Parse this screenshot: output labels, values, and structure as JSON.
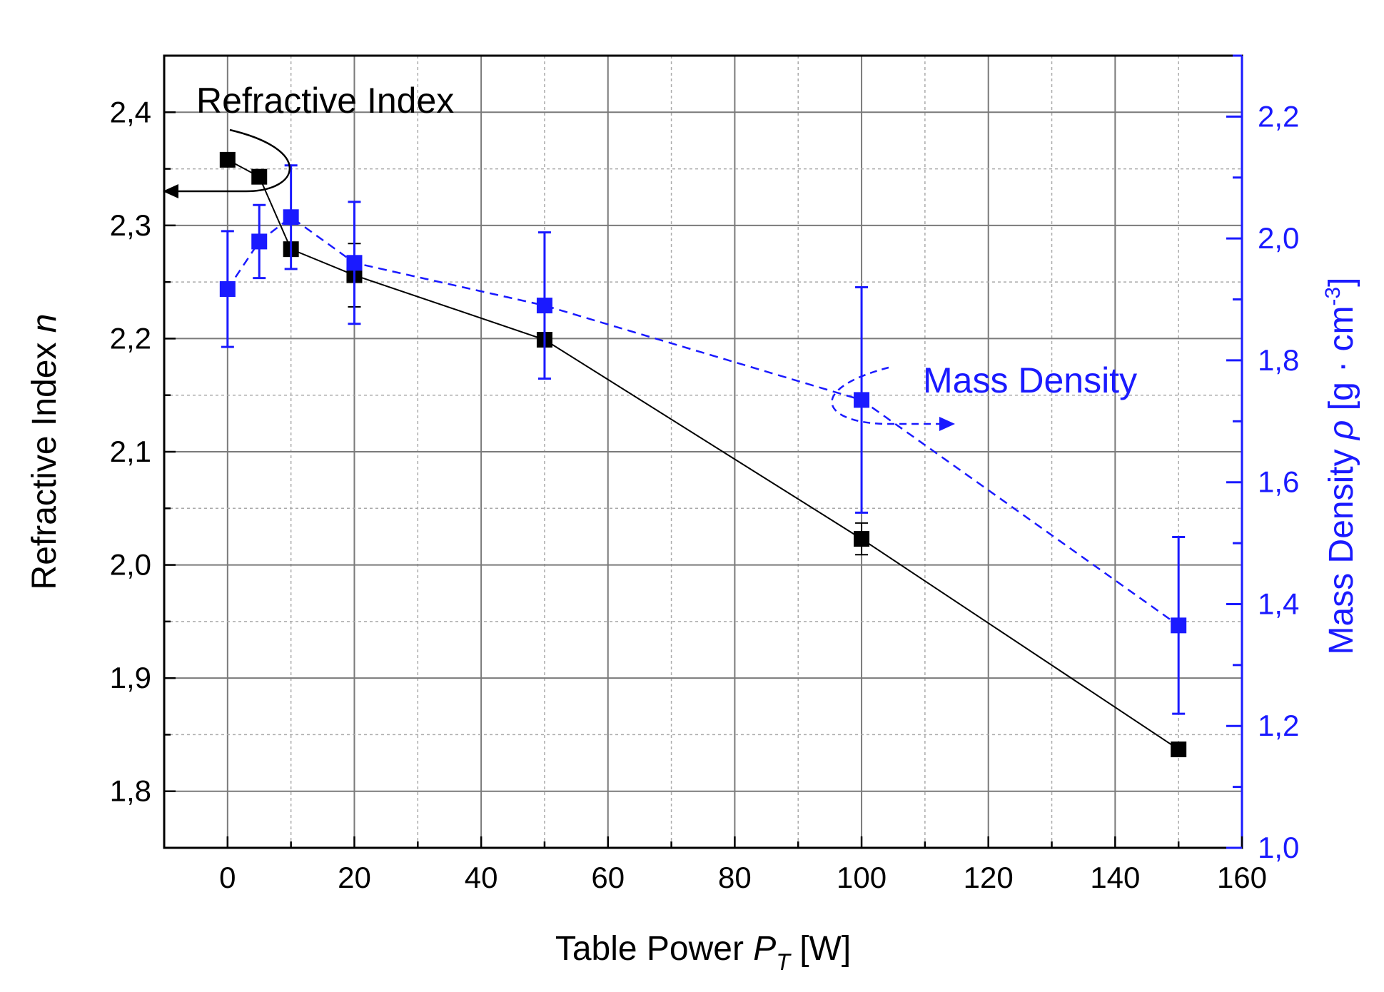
{
  "chart_data": {
    "type": "line",
    "xlabel": {
      "main": "Table Power ",
      "var": "P",
      "sub": "T",
      "unit": " [W]"
    },
    "ylabel_left": {
      "main": "Refractive Index ",
      "var": "n"
    },
    "ylabel_right": {
      "main": "Mass Density ",
      "var": "ρ",
      "unit": " [g · cm",
      "sup": "-3",
      "close": "]"
    },
    "xlim": [
      -10,
      160
    ],
    "ylim_left": [
      1.75,
      2.45
    ],
    "ylim_right": [
      1.0,
      2.3
    ],
    "x_ticks": [
      "0",
      "20",
      "40",
      "60",
      "80",
      "100",
      "120",
      "140",
      "160"
    ],
    "y_left_ticks": [
      "1,8",
      "1,9",
      "2,0",
      "2,1",
      "2,2",
      "2,3",
      "2,4"
    ],
    "y_right_ticks": [
      "1,0",
      "1,2",
      "1,4",
      "1,6",
      "1,8",
      "2,0",
      "2,2"
    ],
    "series": [
      {
        "name": "Refractive Index",
        "axis": "left",
        "color": "#000000",
        "line_style": "solid",
        "x": [
          0,
          5,
          10,
          20,
          50,
          100,
          150
        ],
        "y": [
          2.358,
          2.343,
          2.279,
          2.256,
          2.199,
          2.023,
          1.837
        ],
        "err": [
          0.005,
          0.005,
          0.005,
          0.028,
          0.0,
          0.014,
          0.004
        ]
      },
      {
        "name": "Mass Density",
        "axis": "right",
        "color": "#1a1aff",
        "line_style": "dashed",
        "x": [
          0,
          5,
          10,
          20,
          50,
          100,
          150
        ],
        "y": [
          1.917,
          1.995,
          2.035,
          1.96,
          1.89,
          1.735,
          1.365
        ],
        "err": [
          0.095,
          0.06,
          0.085,
          0.1,
          0.12,
          0.185,
          0.145
        ]
      }
    ],
    "annotations": [
      {
        "text": "Refractive Index",
        "color": "#000000"
      },
      {
        "text": "Mass Density",
        "color": "#1a1aff"
      }
    ]
  }
}
